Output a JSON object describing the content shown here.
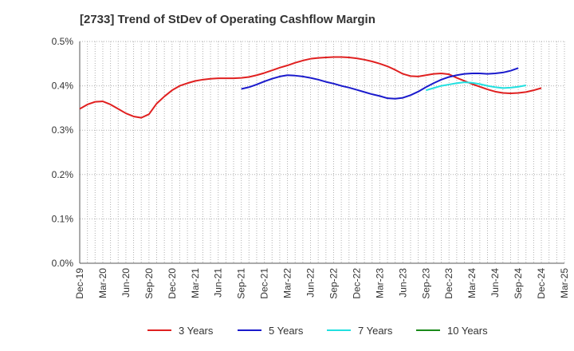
{
  "chart_data": {
    "type": "line",
    "title": "[2733]  Trend of StDev of Operating Cashflow Margin",
    "xlabel": "",
    "ylabel": "",
    "ylim": [
      0,
      0.5
    ],
    "y_ticks": [
      0,
      0.1,
      0.2,
      0.3,
      0.4,
      0.5
    ],
    "y_tick_labels": [
      "0.0%",
      "0.1%",
      "0.2%",
      "0.3%",
      "0.4%",
      "0.5%"
    ],
    "x_tick_labels": [
      "Dec-19",
      "Mar-20",
      "Jun-20",
      "Sep-20",
      "Dec-20",
      "Mar-21",
      "Jun-21",
      "Sep-21",
      "Dec-21",
      "Mar-22",
      "Jun-22",
      "Sep-22",
      "Dec-22",
      "Mar-23",
      "Jun-23",
      "Sep-23",
      "Dec-23",
      "Mar-24",
      "Jun-24",
      "Sep-24",
      "Dec-24",
      "Mar-25"
    ],
    "grid": true,
    "legend_position": "bottom",
    "series": [
      {
        "name": "3 Years",
        "color": "#e02020",
        "start_month": 0,
        "values": [
          0.348,
          0.358,
          0.364,
          0.365,
          0.358,
          0.348,
          0.338,
          0.331,
          0.328,
          0.336,
          0.36,
          0.376,
          0.39,
          0.4,
          0.406,
          0.411,
          0.414,
          0.416,
          0.417,
          0.417,
          0.417,
          0.418,
          0.42,
          0.424,
          0.429,
          0.435,
          0.441,
          0.446,
          0.452,
          0.457,
          0.461,
          0.463,
          0.464,
          0.465,
          0.465,
          0.464,
          0.462,
          0.459,
          0.455,
          0.45,
          0.444,
          0.436,
          0.427,
          0.422,
          0.421,
          0.424,
          0.427,
          0.428,
          0.426,
          0.418,
          0.411,
          0.404,
          0.398,
          0.392,
          0.387,
          0.384,
          0.383,
          0.384,
          0.386,
          0.39,
          0.395
        ]
      },
      {
        "name": "5 Years",
        "color": "#1a1acc",
        "start_month": 21,
        "values": [
          0.393,
          0.397,
          0.403,
          0.41,
          0.416,
          0.421,
          0.424,
          0.423,
          0.421,
          0.418,
          0.414,
          0.409,
          0.405,
          0.4,
          0.396,
          0.391,
          0.386,
          0.381,
          0.377,
          0.372,
          0.371,
          0.373,
          0.379,
          0.387,
          0.397,
          0.406,
          0.414,
          0.42,
          0.424,
          0.427,
          0.428,
          0.428,
          0.427,
          0.428,
          0.43,
          0.434,
          0.44
        ]
      },
      {
        "name": "7 Years",
        "color": "#22e0e0",
        "start_month": 45,
        "values": [
          0.39,
          0.395,
          0.4,
          0.403,
          0.406,
          0.408,
          0.407,
          0.404,
          0.4,
          0.397,
          0.395,
          0.396,
          0.398,
          0.401
        ]
      },
      {
        "name": "10 Years",
        "color": "#1a8a1a",
        "start_month": 0,
        "values": []
      }
    ]
  }
}
